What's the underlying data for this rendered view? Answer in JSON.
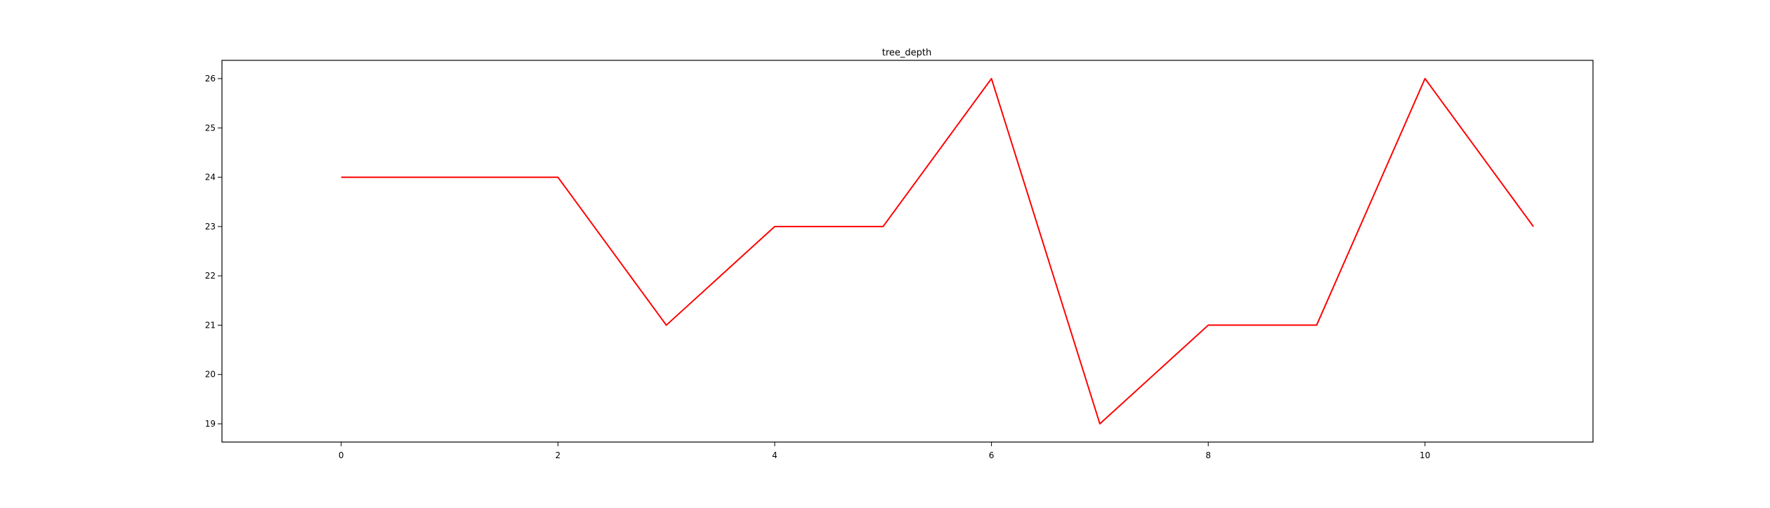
{
  "chart_data": {
    "type": "line",
    "title": "tree_depth",
    "xlabel": "",
    "ylabel": "",
    "x": [
      0,
      1,
      2,
      3,
      4,
      5,
      6,
      7,
      8,
      9,
      10,
      11
    ],
    "series": [
      {
        "values": [
          24,
          24,
          24,
          21,
          23,
          23,
          26,
          19,
          21,
          21,
          26,
          23
        ],
        "color": "#ff0000"
      }
    ],
    "xlim": [
      -1.1,
      11.55
    ],
    "ylim": [
      18.63,
      26.37
    ],
    "xticks": [
      0,
      2,
      4,
      6,
      8,
      10
    ],
    "yticks": [
      19,
      20,
      21,
      22,
      23,
      24,
      25,
      26
    ],
    "grid": false,
    "legend": "none"
  }
}
